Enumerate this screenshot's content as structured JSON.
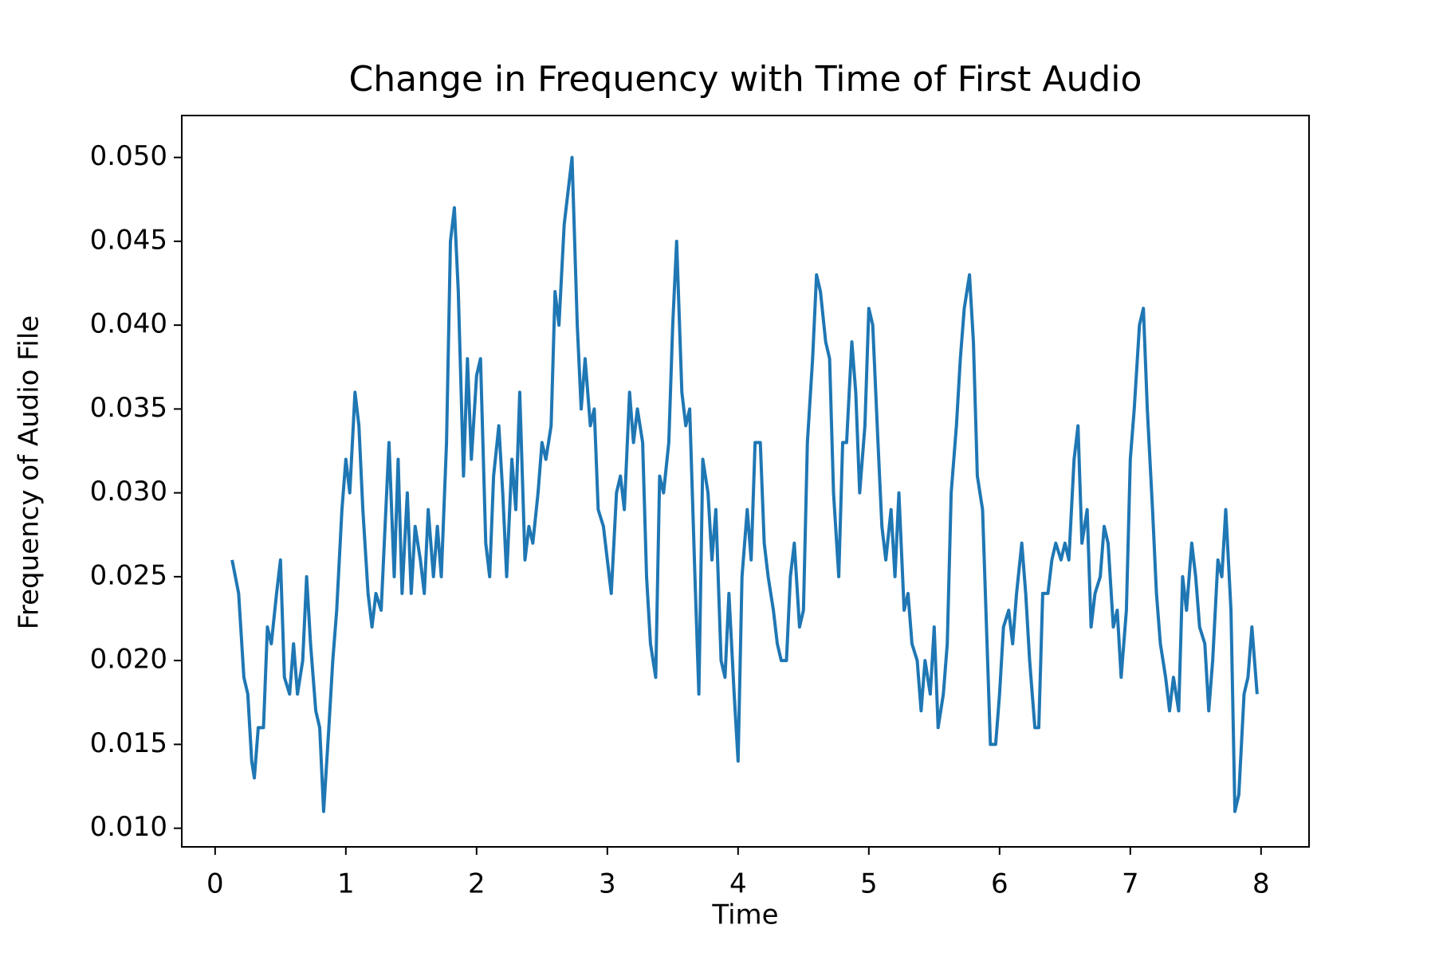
{
  "chart_data": {
    "type": "line",
    "title": "Change in Frequency with Time of First Audio",
    "x_label": "Time",
    "y_label": "Frequency of Audio File",
    "x": [
      0.13,
      0.18,
      0.22,
      0.25,
      0.28,
      0.3,
      0.33,
      0.37,
      0.4,
      0.43,
      0.47,
      0.5,
      0.53,
      0.57,
      0.6,
      0.63,
      0.67,
      0.7,
      0.73,
      0.77,
      0.8,
      0.83,
      0.87,
      0.9,
      0.93,
      0.97,
      1.0,
      1.03,
      1.07,
      1.1,
      1.13,
      1.17,
      1.2,
      1.23,
      1.27,
      1.3,
      1.33,
      1.37,
      1.4,
      1.43,
      1.47,
      1.5,
      1.53,
      1.57,
      1.6,
      1.63,
      1.67,
      1.7,
      1.73,
      1.77,
      1.8,
      1.83,
      1.86,
      1.9,
      1.93,
      1.96,
      2.0,
      2.03,
      2.07,
      2.1,
      2.13,
      2.17,
      2.2,
      2.23,
      2.27,
      2.3,
      2.33,
      2.37,
      2.4,
      2.43,
      2.47,
      2.5,
      2.53,
      2.57,
      2.6,
      2.63,
      2.67,
      2.7,
      2.73,
      2.77,
      2.8,
      2.83,
      2.87,
      2.9,
      2.93,
      2.97,
      3.0,
      3.03,
      3.07,
      3.1,
      3.13,
      3.17,
      3.2,
      3.23,
      3.27,
      3.3,
      3.33,
      3.37,
      3.4,
      3.43,
      3.47,
      3.5,
      3.53,
      3.57,
      3.6,
      3.63,
      3.67,
      3.7,
      3.73,
      3.77,
      3.8,
      3.83,
      3.87,
      3.9,
      3.93,
      3.97,
      4.0,
      4.03,
      4.07,
      4.1,
      4.13,
      4.17,
      4.2,
      4.23,
      4.27,
      4.3,
      4.33,
      4.37,
      4.4,
      4.43,
      4.47,
      4.5,
      4.53,
      4.57,
      4.6,
      4.63,
      4.67,
      4.7,
      4.73,
      4.77,
      4.8,
      4.83,
      4.87,
      4.9,
      4.93,
      4.97,
      5.0,
      5.03,
      5.07,
      5.1,
      5.13,
      5.17,
      5.2,
      5.23,
      5.27,
      5.3,
      5.33,
      5.37,
      5.4,
      5.43,
      5.47,
      5.5,
      5.53,
      5.57,
      5.6,
      5.63,
      5.67,
      5.7,
      5.73,
      5.77,
      5.8,
      5.83,
      5.87,
      5.9,
      5.93,
      5.97,
      6.0,
      6.03,
      6.07,
      6.1,
      6.13,
      6.17,
      6.2,
      6.23,
      6.27,
      6.3,
      6.33,
      6.37,
      6.4,
      6.43,
      6.47,
      6.5,
      6.53,
      6.57,
      6.6,
      6.63,
      6.67,
      6.7,
      6.73,
      6.77,
      6.8,
      6.83,
      6.87,
      6.9,
      6.93,
      6.97,
      7.0,
      7.03,
      7.07,
      7.1,
      7.13,
      7.17,
      7.2,
      7.23,
      7.27,
      7.3,
      7.33,
      7.37,
      7.4,
      7.43,
      7.47,
      7.5,
      7.53,
      7.57,
      7.6,
      7.63,
      7.67,
      7.7,
      7.73,
      7.77,
      7.8,
      7.83,
      7.87,
      7.9,
      7.93,
      7.97
    ],
    "series": [
      {
        "color": "#1f77b4",
        "values": [
          0.026,
          0.024,
          0.019,
          0.018,
          0.014,
          0.013,
          0.016,
          0.016,
          0.022,
          0.021,
          0.024,
          0.026,
          0.019,
          0.018,
          0.021,
          0.018,
          0.02,
          0.025,
          0.021,
          0.017,
          0.016,
          0.011,
          0.016,
          0.02,
          0.023,
          0.029,
          0.032,
          0.03,
          0.036,
          0.034,
          0.029,
          0.024,
          0.022,
          0.024,
          0.023,
          0.028,
          0.033,
          0.025,
          0.032,
          0.024,
          0.03,
          0.024,
          0.028,
          0.026,
          0.024,
          0.029,
          0.025,
          0.028,
          0.025,
          0.033,
          0.045,
          0.047,
          0.042,
          0.031,
          0.038,
          0.032,
          0.037,
          0.038,
          0.027,
          0.025,
          0.031,
          0.034,
          0.03,
          0.025,
          0.032,
          0.029,
          0.036,
          0.026,
          0.028,
          0.027,
          0.03,
          0.033,
          0.032,
          0.034,
          0.042,
          0.04,
          0.046,
          0.048,
          0.05,
          0.04,
          0.035,
          0.038,
          0.034,
          0.035,
          0.029,
          0.028,
          0.026,
          0.024,
          0.03,
          0.031,
          0.029,
          0.036,
          0.033,
          0.035,
          0.033,
          0.025,
          0.021,
          0.019,
          0.031,
          0.03,
          0.033,
          0.04,
          0.045,
          0.036,
          0.034,
          0.035,
          0.025,
          0.018,
          0.032,
          0.03,
          0.026,
          0.029,
          0.02,
          0.019,
          0.024,
          0.018,
          0.014,
          0.025,
          0.029,
          0.026,
          0.033,
          0.033,
          0.027,
          0.025,
          0.023,
          0.021,
          0.02,
          0.02,
          0.025,
          0.027,
          0.022,
          0.023,
          0.033,
          0.038,
          0.043,
          0.042,
          0.039,
          0.038,
          0.03,
          0.025,
          0.033,
          0.033,
          0.039,
          0.036,
          0.03,
          0.034,
          0.041,
          0.04,
          0.033,
          0.028,
          0.026,
          0.029,
          0.025,
          0.03,
          0.023,
          0.024,
          0.021,
          0.02,
          0.017,
          0.02,
          0.018,
          0.022,
          0.016,
          0.018,
          0.021,
          0.03,
          0.034,
          0.038,
          0.041,
          0.043,
          0.039,
          0.031,
          0.029,
          0.022,
          0.015,
          0.015,
          0.018,
          0.022,
          0.023,
          0.021,
          0.024,
          0.027,
          0.024,
          0.02,
          0.016,
          0.016,
          0.024,
          0.024,
          0.026,
          0.027,
          0.026,
          0.027,
          0.026,
          0.032,
          0.034,
          0.027,
          0.029,
          0.022,
          0.024,
          0.025,
          0.028,
          0.027,
          0.022,
          0.023,
          0.019,
          0.023,
          0.032,
          0.035,
          0.04,
          0.041,
          0.035,
          0.029,
          0.024,
          0.021,
          0.019,
          0.017,
          0.019,
          0.017,
          0.025,
          0.023,
          0.027,
          0.025,
          0.022,
          0.021,
          0.017,
          0.02,
          0.026,
          0.025,
          0.029,
          0.023,
          0.011,
          0.012,
          0.018,
          0.019,
          0.022,
          0.018
        ]
      }
    ],
    "xlim": [
      -0.255,
      8.367
    ],
    "ylim": [
      0.00889,
      0.0525
    ],
    "xticks": [
      0,
      1,
      2,
      3,
      4,
      5,
      6,
      7,
      8
    ],
    "yticks": [
      {
        "value": 0.01,
        "label": "0.010"
      },
      0.015,
      {
        "value": 0.02,
        "label": "0.020"
      },
      0.025,
      {
        "value": 0.03,
        "label": "0.030"
      },
      0.035,
      {
        "value": 0.04,
        "label": "0.040"
      },
      0.045,
      {
        "value": 0.05,
        "label": "0.050"
      }
    ]
  }
}
